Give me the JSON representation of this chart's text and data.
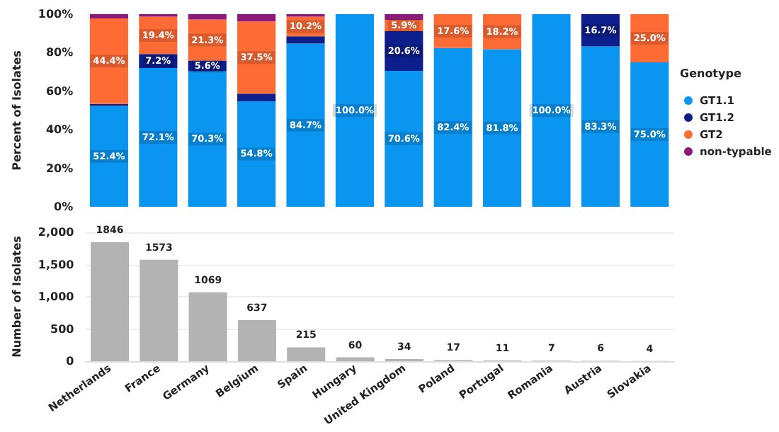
{
  "chart_data": [
    {
      "type": "bar",
      "stacked": true,
      "ylabel": "Percent of Isolates",
      "legend_title": "Genotype",
      "legend": "right",
      "grid": false,
      "tick_labels": "y",
      "categories": [
        null,
        null,
        null,
        null,
        null,
        null,
        null,
        null,
        null,
        null,
        null,
        null
      ],
      "ylim": [
        0,
        100
      ],
      "yticks": [
        {
          "value": 0,
          "label": "0%"
        },
        {
          "value": 20,
          "label": "20%"
        },
        {
          "value": 40,
          "label": "40%"
        },
        {
          "value": 60,
          "label": "60%"
        },
        {
          "value": 80,
          "label": "80%"
        },
        {
          "value": 100,
          "label": "100%"
        }
      ],
      "series": [
        {
          "name": "GT1.1",
          "color": "#0a96f0",
          "values": [
            52.4,
            72.1,
            70.3,
            54.8,
            84.7,
            100,
            70.6,
            82.4,
            81.8,
            100,
            83.3,
            75.0
          ],
          "value_labels": [
            "52.4%",
            "72.1%",
            "70.3%",
            "54.8%",
            "84.7%",
            "100.0%",
            "70.6%",
            "82.4%",
            "81.8%",
            "100.0%",
            "83.3%",
            "75.0%"
          ]
        },
        {
          "name": "GT1.2",
          "color": "#0d1f8c",
          "values": [
            1.0,
            7.2,
            5.6,
            3.9,
            3.8,
            0,
            20.6,
            0,
            0,
            0,
            16.7,
            0
          ],
          "value_labels": [
            null,
            "7.2%",
            "5.6%",
            null,
            null,
            null,
            "20.6%",
            null,
            null,
            null,
            "16.7%",
            null
          ]
        },
        {
          "name": "GT2",
          "color": "#ff6b35",
          "values": [
            44.4,
            19.4,
            21.3,
            37.5,
            10.2,
            0,
            5.9,
            17.6,
            18.2,
            0,
            0,
            25.0
          ],
          "value_labels": [
            "44.4%",
            "19.4%",
            "21.3%",
            "37.5%",
            "10.2%",
            null,
            "5.9%",
            "17.6%",
            "18.2%",
            null,
            null,
            "25.0%"
          ]
        },
        {
          "name": "non-typable",
          "color": "#8b1a7a",
          "values": [
            2.2,
            1.3,
            2.8,
            3.8,
            1.3,
            0,
            2.9,
            0,
            0,
            0,
            0,
            0
          ]
        }
      ]
    },
    {
      "type": "bar",
      "ylabel": "Number of Isolates",
      "grid": "y",
      "data_labels": true,
      "categories": [
        "Netherlands",
        "France",
        "Germany",
        "Belgium",
        "Spain",
        "Hungary",
        "United Kingdom",
        "Poland",
        "Portugal",
        "Romania",
        "Austria",
        "Slovakia"
      ],
      "ylim": [
        0,
        2000
      ],
      "yticks": [
        0,
        500,
        {
          "value": 1000,
          "label": "1,000"
        },
        {
          "value": 1500,
          "label": "1,500"
        },
        {
          "value": 2000,
          "label": "2,000"
        }
      ],
      "series": [
        {
          "color": "#b3b3b3",
          "values": [
            1846,
            1573,
            1069,
            637,
            215,
            60,
            34,
            17,
            11,
            7,
            6,
            4
          ]
        }
      ]
    }
  ]
}
